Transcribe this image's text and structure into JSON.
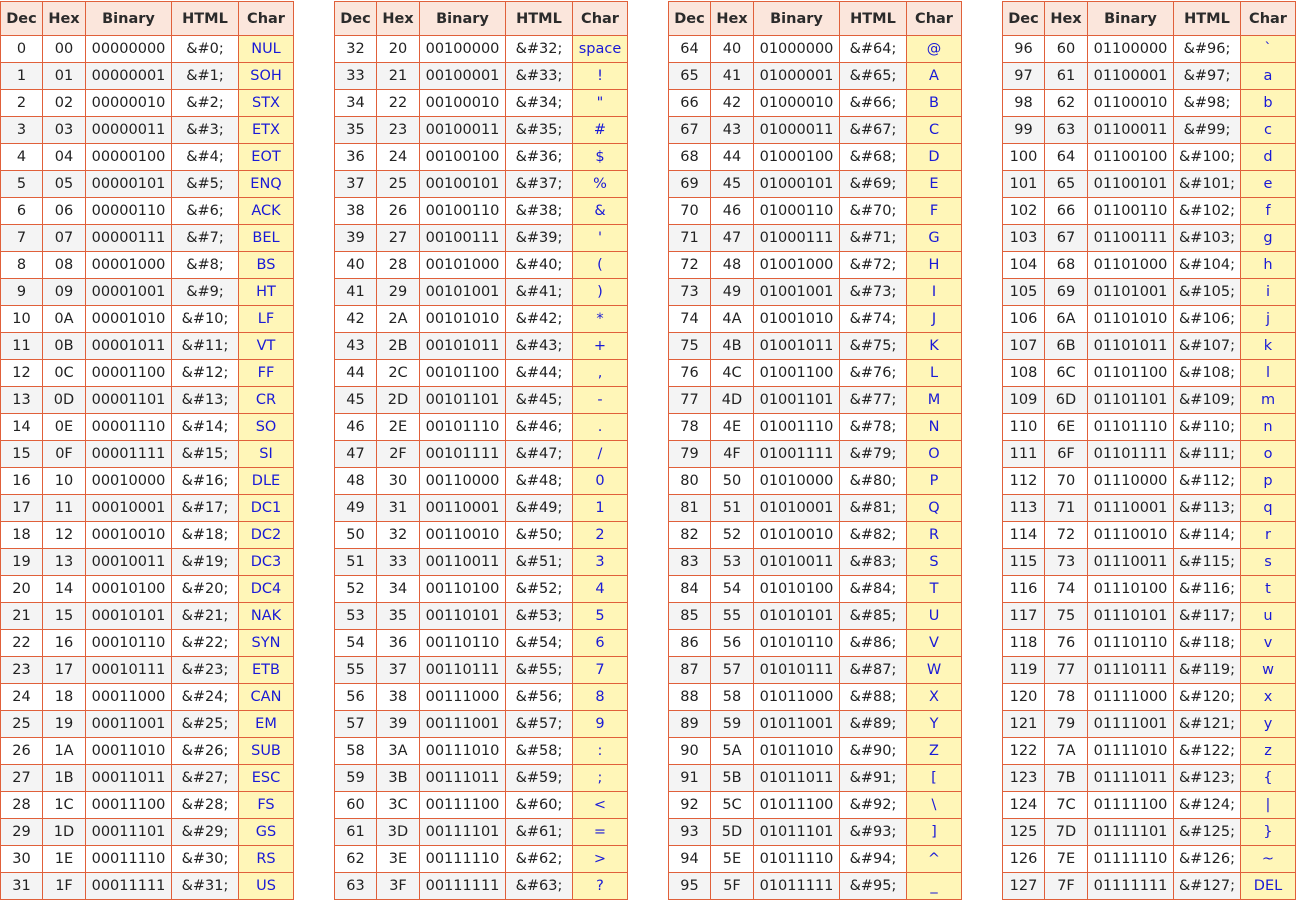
{
  "headers": [
    "Dec",
    "Hex",
    "Binary",
    "HTML",
    "Char"
  ],
  "tables": [
    {
      "rows": [
        [
          "0",
          "00",
          "00000000",
          "&#0;",
          "NUL"
        ],
        [
          "1",
          "01",
          "00000001",
          "&#1;",
          "SOH"
        ],
        [
          "2",
          "02",
          "00000010",
          "&#2;",
          "STX"
        ],
        [
          "3",
          "03",
          "00000011",
          "&#3;",
          "ETX"
        ],
        [
          "4",
          "04",
          "00000100",
          "&#4;",
          "EOT"
        ],
        [
          "5",
          "05",
          "00000101",
          "&#5;",
          "ENQ"
        ],
        [
          "6",
          "06",
          "00000110",
          "&#6;",
          "ACK"
        ],
        [
          "7",
          "07",
          "00000111",
          "&#7;",
          "BEL"
        ],
        [
          "8",
          "08",
          "00001000",
          "&#8;",
          "BS"
        ],
        [
          "9",
          "09",
          "00001001",
          "&#9;",
          "HT"
        ],
        [
          "10",
          "0A",
          "00001010",
          "&#10;",
          "LF"
        ],
        [
          "11",
          "0B",
          "00001011",
          "&#11;",
          "VT"
        ],
        [
          "12",
          "0C",
          "00001100",
          "&#12;",
          "FF"
        ],
        [
          "13",
          "0D",
          "00001101",
          "&#13;",
          "CR"
        ],
        [
          "14",
          "0E",
          "00001110",
          "&#14;",
          "SO"
        ],
        [
          "15",
          "0F",
          "00001111",
          "&#15;",
          "SI"
        ],
        [
          "16",
          "10",
          "00010000",
          "&#16;",
          "DLE"
        ],
        [
          "17",
          "11",
          "00010001",
          "&#17;",
          "DC1"
        ],
        [
          "18",
          "12",
          "00010010",
          "&#18;",
          "DC2"
        ],
        [
          "19",
          "13",
          "00010011",
          "&#19;",
          "DC3"
        ],
        [
          "20",
          "14",
          "00010100",
          "&#20;",
          "DC4"
        ],
        [
          "21",
          "15",
          "00010101",
          "&#21;",
          "NAK"
        ],
        [
          "22",
          "16",
          "00010110",
          "&#22;",
          "SYN"
        ],
        [
          "23",
          "17",
          "00010111",
          "&#23;",
          "ETB"
        ],
        [
          "24",
          "18",
          "00011000",
          "&#24;",
          "CAN"
        ],
        [
          "25",
          "19",
          "00011001",
          "&#25;",
          "EM"
        ],
        [
          "26",
          "1A",
          "00011010",
          "&#26;",
          "SUB"
        ],
        [
          "27",
          "1B",
          "00011011",
          "&#27;",
          "ESC"
        ],
        [
          "28",
          "1C",
          "00011100",
          "&#28;",
          "FS"
        ],
        [
          "29",
          "1D",
          "00011101",
          "&#29;",
          "GS"
        ],
        [
          "30",
          "1E",
          "00011110",
          "&#30;",
          "RS"
        ],
        [
          "31",
          "1F",
          "00011111",
          "&#31;",
          "US"
        ]
      ]
    },
    {
      "rows": [
        [
          "32",
          "20",
          "00100000",
          "&#32;",
          "space"
        ],
        [
          "33",
          "21",
          "00100001",
          "&#33;",
          "!"
        ],
        [
          "34",
          "22",
          "00100010",
          "&#34;",
          "\""
        ],
        [
          "35",
          "23",
          "00100011",
          "&#35;",
          "#"
        ],
        [
          "36",
          "24",
          "00100100",
          "&#36;",
          "$"
        ],
        [
          "37",
          "25",
          "00100101",
          "&#37;",
          "%"
        ],
        [
          "38",
          "26",
          "00100110",
          "&#38;",
          "&"
        ],
        [
          "39",
          "27",
          "00100111",
          "&#39;",
          "'"
        ],
        [
          "40",
          "28",
          "00101000",
          "&#40;",
          "("
        ],
        [
          "41",
          "29",
          "00101001",
          "&#41;",
          ")"
        ],
        [
          "42",
          "2A",
          "00101010",
          "&#42;",
          "*"
        ],
        [
          "43",
          "2B",
          "00101011",
          "&#43;",
          "+"
        ],
        [
          "44",
          "2C",
          "00101100",
          "&#44;",
          ","
        ],
        [
          "45",
          "2D",
          "00101101",
          "&#45;",
          "-"
        ],
        [
          "46",
          "2E",
          "00101110",
          "&#46;",
          "."
        ],
        [
          "47",
          "2F",
          "00101111",
          "&#47;",
          "/"
        ],
        [
          "48",
          "30",
          "00110000",
          "&#48;",
          "0"
        ],
        [
          "49",
          "31",
          "00110001",
          "&#49;",
          "1"
        ],
        [
          "50",
          "32",
          "00110010",
          "&#50;",
          "2"
        ],
        [
          "51",
          "33",
          "00110011",
          "&#51;",
          "3"
        ],
        [
          "52",
          "34",
          "00110100",
          "&#52;",
          "4"
        ],
        [
          "53",
          "35",
          "00110101",
          "&#53;",
          "5"
        ],
        [
          "54",
          "36",
          "00110110",
          "&#54;",
          "6"
        ],
        [
          "55",
          "37",
          "00110111",
          "&#55;",
          "7"
        ],
        [
          "56",
          "38",
          "00111000",
          "&#56;",
          "8"
        ],
        [
          "57",
          "39",
          "00111001",
          "&#57;",
          "9"
        ],
        [
          "58",
          "3A",
          "00111010",
          "&#58;",
          ":"
        ],
        [
          "59",
          "3B",
          "00111011",
          "&#59;",
          ";"
        ],
        [
          "60",
          "3C",
          "00111100",
          "&#60;",
          "<"
        ],
        [
          "61",
          "3D",
          "00111101",
          "&#61;",
          "="
        ],
        [
          "62",
          "3E",
          "00111110",
          "&#62;",
          ">"
        ],
        [
          "63",
          "3F",
          "00111111",
          "&#63;",
          "?"
        ]
      ]
    },
    {
      "rows": [
        [
          "64",
          "40",
          "01000000",
          "&#64;",
          "@"
        ],
        [
          "65",
          "41",
          "01000001",
          "&#65;",
          "A"
        ],
        [
          "66",
          "42",
          "01000010",
          "&#66;",
          "B"
        ],
        [
          "67",
          "43",
          "01000011",
          "&#67;",
          "C"
        ],
        [
          "68",
          "44",
          "01000100",
          "&#68;",
          "D"
        ],
        [
          "69",
          "45",
          "01000101",
          "&#69;",
          "E"
        ],
        [
          "70",
          "46",
          "01000110",
          "&#70;",
          "F"
        ],
        [
          "71",
          "47",
          "01000111",
          "&#71;",
          "G"
        ],
        [
          "72",
          "48",
          "01001000",
          "&#72;",
          "H"
        ],
        [
          "73",
          "49",
          "01001001",
          "&#73;",
          "I"
        ],
        [
          "74",
          "4A",
          "01001010",
          "&#74;",
          "J"
        ],
        [
          "75",
          "4B",
          "01001011",
          "&#75;",
          "K"
        ],
        [
          "76",
          "4C",
          "01001100",
          "&#76;",
          "L"
        ],
        [
          "77",
          "4D",
          "01001101",
          "&#77;",
          "M"
        ],
        [
          "78",
          "4E",
          "01001110",
          "&#78;",
          "N"
        ],
        [
          "79",
          "4F",
          "01001111",
          "&#79;",
          "O"
        ],
        [
          "80",
          "50",
          "01010000",
          "&#80;",
          "P"
        ],
        [
          "81",
          "51",
          "01010001",
          "&#81;",
          "Q"
        ],
        [
          "82",
          "52",
          "01010010",
          "&#82;",
          "R"
        ],
        [
          "83",
          "53",
          "01010011",
          "&#83;",
          "S"
        ],
        [
          "84",
          "54",
          "01010100",
          "&#84;",
          "T"
        ],
        [
          "85",
          "55",
          "01010101",
          "&#85;",
          "U"
        ],
        [
          "86",
          "56",
          "01010110",
          "&#86;",
          "V"
        ],
        [
          "87",
          "57",
          "01010111",
          "&#87;",
          "W"
        ],
        [
          "88",
          "58",
          "01011000",
          "&#88;",
          "X"
        ],
        [
          "89",
          "59",
          "01011001",
          "&#89;",
          "Y"
        ],
        [
          "90",
          "5A",
          "01011010",
          "&#90;",
          "Z"
        ],
        [
          "91",
          "5B",
          "01011011",
          "&#91;",
          "["
        ],
        [
          "92",
          "5C",
          "01011100",
          "&#92;",
          "\\"
        ],
        [
          "93",
          "5D",
          "01011101",
          "&#93;",
          "]"
        ],
        [
          "94",
          "5E",
          "01011110",
          "&#94;",
          "^"
        ],
        [
          "95",
          "5F",
          "01011111",
          "&#95;",
          "_"
        ]
      ]
    },
    {
      "rows": [
        [
          "96",
          "60",
          "01100000",
          "&#96;",
          "`"
        ],
        [
          "97",
          "61",
          "01100001",
          "&#97;",
          "a"
        ],
        [
          "98",
          "62",
          "01100010",
          "&#98;",
          "b"
        ],
        [
          "99",
          "63",
          "01100011",
          "&#99;",
          "c"
        ],
        [
          "100",
          "64",
          "01100100",
          "&#100;",
          "d"
        ],
        [
          "101",
          "65",
          "01100101",
          "&#101;",
          "e"
        ],
        [
          "102",
          "66",
          "01100110",
          "&#102;",
          "f"
        ],
        [
          "103",
          "67",
          "01100111",
          "&#103;",
          "g"
        ],
        [
          "104",
          "68",
          "01101000",
          "&#104;",
          "h"
        ],
        [
          "105",
          "69",
          "01101001",
          "&#105;",
          "i"
        ],
        [
          "106",
          "6A",
          "01101010",
          "&#106;",
          "j"
        ],
        [
          "107",
          "6B",
          "01101011",
          "&#107;",
          "k"
        ],
        [
          "108",
          "6C",
          "01101100",
          "&#108;",
          "l"
        ],
        [
          "109",
          "6D",
          "01101101",
          "&#109;",
          "m"
        ],
        [
          "110",
          "6E",
          "01101110",
          "&#110;",
          "n"
        ],
        [
          "111",
          "6F",
          "01101111",
          "&#111;",
          "o"
        ],
        [
          "112",
          "70",
          "01110000",
          "&#112;",
          "p"
        ],
        [
          "113",
          "71",
          "01110001",
          "&#113;",
          "q"
        ],
        [
          "114",
          "72",
          "01110010",
          "&#114;",
          "r"
        ],
        [
          "115",
          "73",
          "01110011",
          "&#115;",
          "s"
        ],
        [
          "116",
          "74",
          "01110100",
          "&#116;",
          "t"
        ],
        [
          "117",
          "75",
          "01110101",
          "&#117;",
          "u"
        ],
        [
          "118",
          "76",
          "01110110",
          "&#118;",
          "v"
        ],
        [
          "119",
          "77",
          "01110111",
          "&#119;",
          "w"
        ],
        [
          "120",
          "78",
          "01111000",
          "&#120;",
          "x"
        ],
        [
          "121",
          "79",
          "01111001",
          "&#121;",
          "y"
        ],
        [
          "122",
          "7A",
          "01111010",
          "&#122;",
          "z"
        ],
        [
          "123",
          "7B",
          "01111011",
          "&#123;",
          "{"
        ],
        [
          "124",
          "7C",
          "01111100",
          "&#124;",
          "|"
        ],
        [
          "125",
          "7D",
          "01111101",
          "&#125;",
          "}"
        ],
        [
          "126",
          "7E",
          "01111110",
          "&#126;",
          "~"
        ],
        [
          "127",
          "7F",
          "01111111",
          "&#127;",
          "DEL"
        ]
      ]
    }
  ]
}
